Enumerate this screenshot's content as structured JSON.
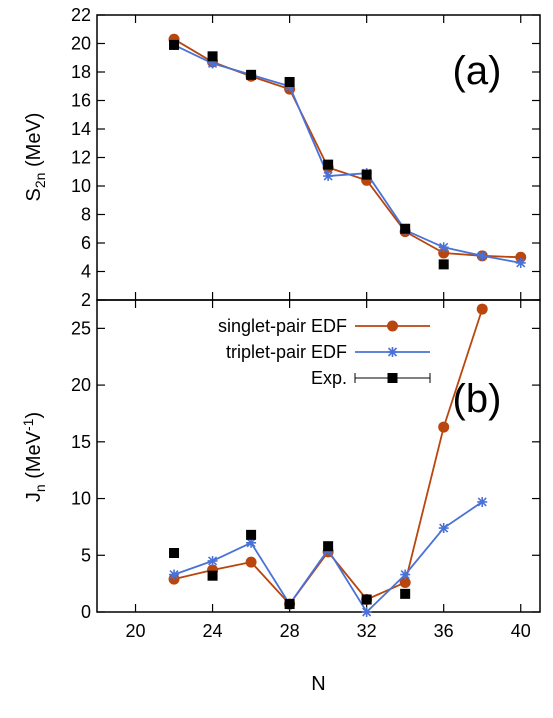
{
  "chart_data": [
    {
      "type": "line",
      "panel_label": "(a)",
      "xlabel": "N",
      "ylabel_main": "S",
      "ylabel_sub": "2n",
      "ylabel_unit": " (MeV)",
      "xlim": [
        18,
        41
      ],
      "ylim": [
        2,
        22
      ],
      "xticks": [
        20,
        24,
        28,
        32,
        36,
        40
      ],
      "yticks": [
        2,
        4,
        6,
        8,
        10,
        12,
        14,
        16,
        18,
        20,
        22
      ],
      "grid": false,
      "series": [
        {
          "id": "singlet",
          "color": "#b8460e",
          "marker": "circle",
          "line": true,
          "x": [
            22,
            24,
            26,
            28,
            30,
            32,
            34,
            36,
            38,
            40
          ],
          "y": [
            20.3,
            18.7,
            17.7,
            16.8,
            11.3,
            10.4,
            6.8,
            5.3,
            5.1,
            5.0
          ]
        },
        {
          "id": "triplet",
          "color": "#4a72d6",
          "marker": "star",
          "line": true,
          "x": [
            22,
            24,
            26,
            28,
            30,
            32,
            34,
            36,
            38,
            40
          ],
          "y": [
            19.9,
            18.6,
            17.8,
            17.0,
            10.7,
            10.9,
            6.9,
            5.7,
            5.1,
            4.6
          ]
        },
        {
          "id": "exp",
          "color": "#000000",
          "marker": "square",
          "line": false,
          "x": [
            22,
            24,
            26,
            28,
            30,
            32,
            34,
            36
          ],
          "y": [
            19.9,
            19.1,
            17.8,
            17.3,
            11.5,
            10.8,
            7.0,
            4.5
          ]
        }
      ]
    },
    {
      "type": "line",
      "panel_label": "(b)",
      "xlabel": "N",
      "ylabel_main": "J",
      "ylabel_sub": "n",
      "ylabel_unit": " (MeV",
      "ylabel_sup": "-1",
      "ylabel_close": ")",
      "xlim": [
        18,
        41
      ],
      "ylim": [
        0,
        27.5
      ],
      "xticks": [
        20,
        24,
        28,
        32,
        36,
        40
      ],
      "yticks": [
        0,
        5,
        10,
        15,
        20,
        25
      ],
      "grid": false,
      "legend_position": "top-left",
      "series": [
        {
          "id": "singlet",
          "name": "singlet-pair EDF",
          "color": "#b8460e",
          "marker": "circle",
          "line": true,
          "x": [
            22,
            24,
            26,
            28,
            30,
            32,
            34,
            36,
            38
          ],
          "y": [
            2.9,
            3.7,
            4.4,
            0.7,
            5.3,
            1.1,
            2.6,
            16.3,
            26.7
          ]
        },
        {
          "id": "triplet",
          "name": "triplet-pair EDF",
          "color": "#4a72d6",
          "marker": "star",
          "line": true,
          "x": [
            22,
            24,
            26,
            28,
            30,
            32,
            34,
            36,
            38
          ],
          "y": [
            3.3,
            4.5,
            6.1,
            0.7,
            5.5,
            0.0,
            3.3,
            7.4,
            9.7
          ]
        },
        {
          "id": "exp",
          "name": "Exp.",
          "color": "#000000",
          "marker": "square",
          "line": false,
          "x": [
            22,
            24,
            26,
            28,
            30,
            32,
            34
          ],
          "y": [
            5.2,
            3.2,
            6.8,
            0.7,
            5.8,
            1.1,
            1.6
          ]
        }
      ]
    }
  ]
}
